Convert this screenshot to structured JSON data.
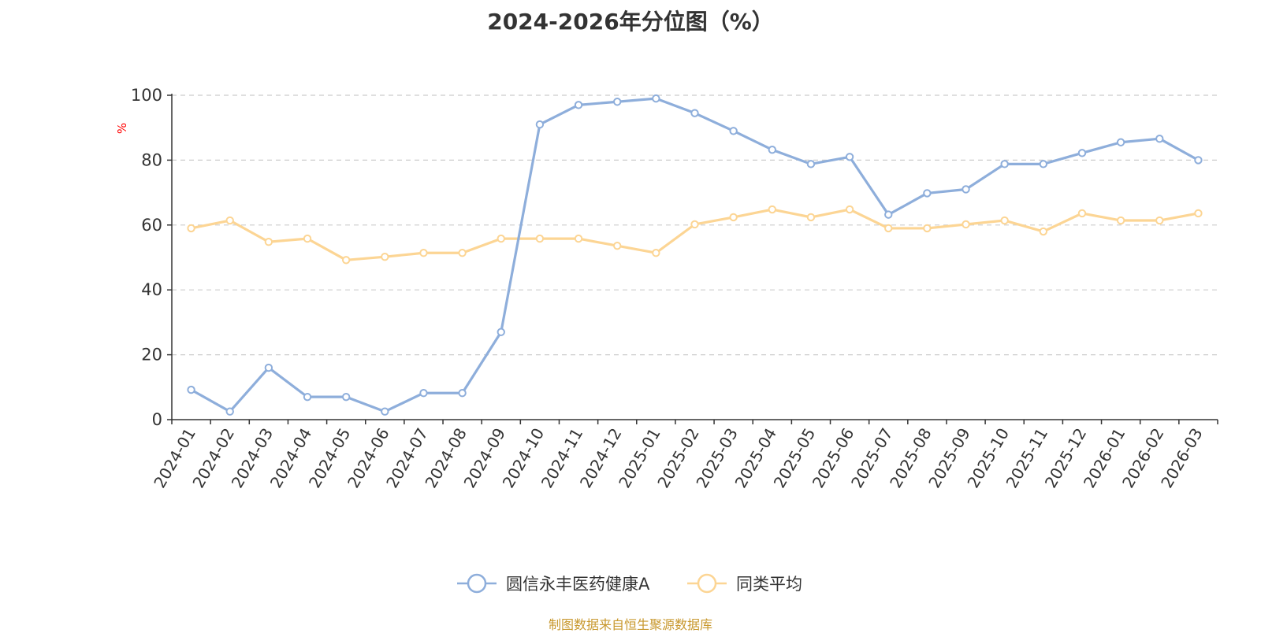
{
  "title": "2024-2026年分位图（%）",
  "source": "制图数据来自恒生聚源数据库",
  "chart_data": {
    "type": "line",
    "title": "2024-2026年分位图（%）",
    "xlabel": "",
    "ylabel": "%",
    "ylim": [
      0,
      100
    ],
    "yticks": [
      0,
      20,
      40,
      60,
      80,
      100
    ],
    "grid": "horizontal dashed",
    "legend_position": "bottom",
    "categories": [
      "2024-01",
      "2024-02",
      "2024-03",
      "2024-04",
      "2024-05",
      "2024-06",
      "2024-07",
      "2024-08",
      "2024-09",
      "2024-10",
      "2024-11",
      "2024-12",
      "2025-01",
      "2025-02",
      "2025-03",
      "2025-04",
      "2025-05",
      "2025-06",
      "2025-07",
      "2025-08",
      "2025-09",
      "2025-10",
      "2025-11",
      "2025-12",
      "2026-01",
      "2026-02",
      "2026-03"
    ],
    "series": [
      {
        "name": "圆信永丰医药健康A",
        "color": "#8eaedb",
        "values": [
          9.2,
          2.5,
          16,
          7,
          7,
          2.5,
          8.2,
          8.2,
          27,
          91,
          97,
          98,
          99,
          94.5,
          89,
          83.2,
          78.8,
          81,
          63.2,
          69.8,
          71,
          78.8,
          78.8,
          82.2,
          85.5,
          86.6,
          80
        ]
      },
      {
        "name": "同类平均",
        "color": "#fcd594",
        "values": [
          59,
          61.4,
          54.8,
          55.8,
          49.2,
          50.2,
          51.4,
          51.4,
          55.8,
          55.8,
          55.8,
          53.6,
          51.4,
          60.2,
          62.4,
          64.8,
          62.4,
          64.8,
          59,
          59,
          60.2,
          61.4,
          58,
          63.6,
          61.4,
          61.4,
          63.6
        ]
      }
    ]
  }
}
